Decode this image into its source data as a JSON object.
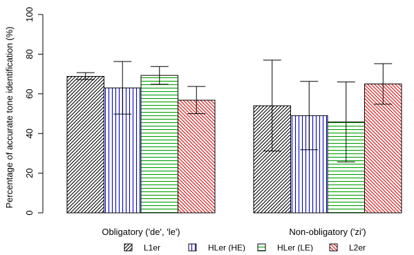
{
  "chart_data": {
    "type": "bar",
    "ylabel": "Percentage of accurate tone identification (%)",
    "xlabel": "",
    "ylim": [
      0,
      100
    ],
    "yticks": [
      0,
      20,
      40,
      60,
      80,
      100
    ],
    "categories": [
      "Obligatory ('de', 'le')",
      "Non-obligatory ('zi')"
    ],
    "series": [
      {
        "name": "L1er",
        "values": [
          68.8,
          54.0
        ],
        "error_low": [
          67.2,
          31.2
        ],
        "error_high": [
          70.7,
          77.0
        ],
        "color": "#000000",
        "hatch": "diag-right"
      },
      {
        "name": "HLer (HE)",
        "values": [
          63.0,
          49.0
        ],
        "error_low": [
          49.8,
          31.8
        ],
        "error_high": [
          76.3,
          66.3
        ],
        "color": "#0000cc",
        "hatch": "vertical"
      },
      {
        "name": "HLer (LE)",
        "values": [
          69.3,
          45.8
        ],
        "error_low": [
          64.8,
          25.7
        ],
        "error_high": [
          73.8,
          66.0
        ],
        "color": "#00a000",
        "hatch": "horizontal"
      },
      {
        "name": "L2er",
        "values": [
          56.8,
          65.0
        ],
        "error_low": [
          50.0,
          54.8
        ],
        "error_high": [
          63.7,
          75.2
        ],
        "color": "#dd0000",
        "hatch": "diag-left"
      }
    ],
    "grid": false,
    "legend_position": "bottom"
  }
}
